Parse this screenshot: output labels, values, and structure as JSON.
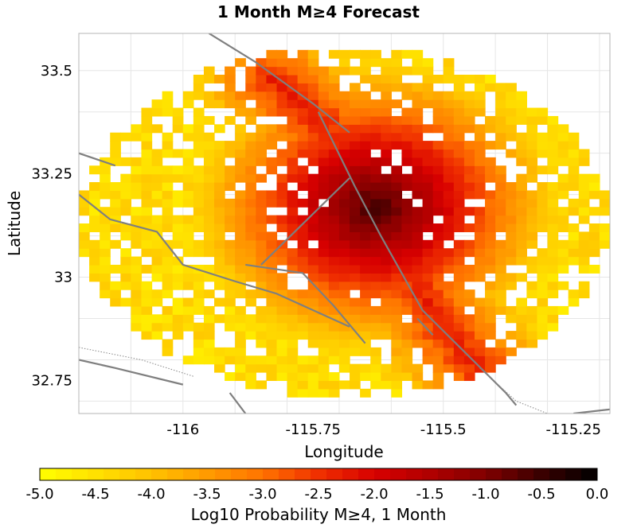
{
  "chart_data": {
    "type": "heatmap",
    "title": "1 Month M≥4 Forecast",
    "xlabel": "Longitude",
    "ylabel": "Latitude",
    "xlim": [
      -116.2,
      -115.18
    ],
    "ylim": [
      32.67,
      33.59
    ],
    "x_ticks": [
      {
        "value": -116,
        "label": "-116"
      },
      {
        "value": -115.75,
        "label": "-115.75"
      },
      {
        "value": -115.5,
        "label": "-115.5"
      },
      {
        "value": -115.25,
        "label": "-115.25"
      }
    ],
    "y_ticks": [
      {
        "value": 32.75,
        "label": "32.75"
      },
      {
        "value": 33,
        "label": "33"
      },
      {
        "value": 33.25,
        "label": "33.25"
      },
      {
        "value": 33.5,
        "label": "33.5"
      }
    ],
    "grid": true,
    "grid_spacing_deg": 0.1,
    "forecast_region": {
      "center_lon": -115.69,
      "center_lat": 33.135,
      "radius_lon": 0.51,
      "radius_lat": 0.425
    },
    "cells": {
      "lon_start": -116.2,
      "lat_start": 32.67,
      "step": 0.02,
      "background_log10": -4.4,
      "peak": {
        "lon": -115.63,
        "lat": 33.17,
        "log10": -0.5
      },
      "rupture_trace": [
        [
          -115.83,
          33.48
        ],
        [
          -115.73,
          33.37
        ],
        [
          -115.66,
          33.23
        ],
        [
          -115.6,
          33.08
        ],
        [
          -115.5,
          32.88
        ],
        [
          -115.42,
          32.76
        ]
      ],
      "empty_fraction": 0.1
    },
    "faults": [
      [
        [
          -115.95,
          33.59
        ],
        [
          -115.86,
          33.52
        ],
        [
          -115.75,
          33.42
        ],
        [
          -115.68,
          33.35
        ]
      ],
      [
        [
          -115.74,
          33.4
        ],
        [
          -115.67,
          33.22
        ],
        [
          -115.62,
          33.1
        ],
        [
          -115.54,
          32.92
        ],
        [
          -115.46,
          32.82
        ],
        [
          -115.38,
          32.72
        ],
        [
          -115.36,
          32.69
        ]
      ],
      [
        [
          -116.2,
          33.3
        ],
        [
          -116.13,
          33.27
        ]
      ],
      [
        [
          -116.2,
          33.2
        ],
        [
          -116.14,
          33.14
        ],
        [
          -116.05,
          33.11
        ],
        [
          -116.0,
          33.03
        ],
        [
          -115.9,
          32.99
        ],
        [
          -115.82,
          32.96
        ],
        [
          -115.68,
          32.88
        ]
      ],
      [
        [
          -115.88,
          33.03
        ],
        [
          -115.77,
          33.01
        ],
        [
          -115.71,
          32.93
        ],
        [
          -115.65,
          32.84
        ]
      ],
      [
        [
          -115.85,
          33.03
        ],
        [
          -115.68,
          33.24
        ]
      ],
      [
        [
          -116.2,
          32.8
        ],
        [
          -116.13,
          32.78
        ],
        [
          -116.0,
          32.74
        ]
      ],
      [
        [
          -115.91,
          32.72
        ],
        [
          -115.88,
          32.67
        ]
      ],
      [
        [
          -115.55,
          32.9
        ],
        [
          -115.52,
          32.86
        ]
      ],
      [
        [
          -115.25,
          32.67
        ],
        [
          -115.18,
          32.68
        ]
      ]
    ],
    "dotted_lines": [
      [
        [
          -116.2,
          32.83
        ],
        [
          -116.08,
          32.8
        ],
        [
          -115.98,
          32.76
        ]
      ],
      [
        [
          -115.43,
          32.78
        ],
        [
          -115.36,
          32.7
        ],
        [
          -115.3,
          32.67
        ]
      ]
    ],
    "colorbar": {
      "label": "Log10 Probability M≥4, 1 Month",
      "min": -5.0,
      "max": 0.0,
      "tick_labels": [
        "-5.0",
        "-4.5",
        "-4.0",
        "-3.5",
        "-3.0",
        "-2.5",
        "-2.0",
        "-1.5",
        "-1.0",
        "-0.5",
        "0.0"
      ],
      "stops": [
        {
          "value": -5.0,
          "color": "#ffff00"
        },
        {
          "value": -4.0,
          "color": "#ffc200"
        },
        {
          "value": -3.0,
          "color": "#ff7300"
        },
        {
          "value": -2.5,
          "color": "#f03000"
        },
        {
          "value": -2.0,
          "color": "#d80000"
        },
        {
          "value": -1.5,
          "color": "#b00000"
        },
        {
          "value": -1.0,
          "color": "#800000"
        },
        {
          "value": -0.5,
          "color": "#3a0000"
        },
        {
          "value": 0.0,
          "color": "#000000"
        }
      ]
    }
  }
}
